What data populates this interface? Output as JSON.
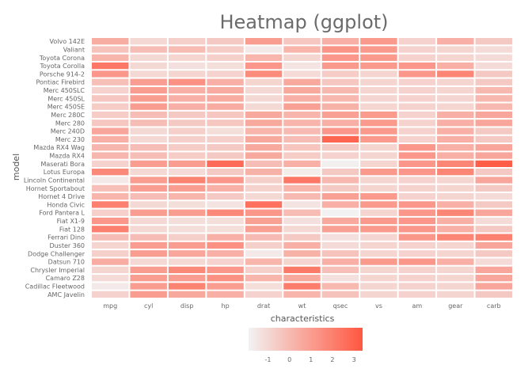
{
  "chart_data": {
    "type": "heatmap",
    "title": "Heatmap (ggplot)",
    "xlabel": "characteristics",
    "ylabel": "model",
    "columns": [
      "mpg",
      "cyl",
      "disp",
      "hp",
      "drat",
      "wt",
      "qsec",
      "vs",
      "am",
      "gear",
      "carb"
    ],
    "rows": [
      "Volvo 142E",
      "Valiant",
      "Toyota Corona",
      "Toyota Corolla",
      "Porsche 914-2",
      "Pontiac Firebird",
      "Merc 450SLC",
      "Merc 450SL",
      "Merc 450SE",
      "Merc 280C",
      "Merc 280",
      "Merc 240D",
      "Merc 230",
      "Mazda RX4 Wag",
      "Mazda RX4",
      "Maserati Bora",
      "Lotus Europa",
      "Lincoln Continental",
      "Hornet Sportabout",
      "Hornet 4 Drive",
      "Honda Civic",
      "Ford Pantera L",
      "Fiat X1-9",
      "Fiat 128",
      "Ferrari Dino",
      "Duster 360",
      "Dodge Challenger",
      "Datsun 710",
      "Chrysler Imperial",
      "Camaro Z28",
      "Cadillac Fleetwood",
      "AMC Javelin"
    ],
    "values": [
      [
        0.45,
        -1.0,
        -0.7,
        -0.5,
        1.0,
        -0.4,
        0.4,
        1.1,
        -0.8,
        0.4,
        -0.5
      ],
      [
        -0.3,
        -0.1,
        -0.05,
        -0.6,
        -1.6,
        0.2,
        1.3,
        1.1,
        -0.8,
        -0.9,
        -1.1
      ],
      [
        0.2,
        -1.0,
        -0.9,
        -0.7,
        0.2,
        -0.9,
        1.2,
        1.1,
        -0.8,
        -0.9,
        -1.1
      ],
      [
        2.3,
        -1.0,
        -1.3,
        -1.2,
        1.2,
        -1.4,
        1.1,
        1.1,
        1.2,
        0.4,
        -1.1
      ],
      [
        1.2,
        -1.0,
        -0.9,
        -0.8,
        1.6,
        -1.1,
        -0.6,
        -0.9,
        1.2,
        1.8,
        -0.5
      ],
      [
        -0.2,
        1.0,
        1.4,
        0.4,
        -0.9,
        0.6,
        -0.4,
        -0.9,
        -0.8,
        -0.9,
        -0.5
      ],
      [
        -0.8,
        1.0,
        0.4,
        0.5,
        -1.0,
        0.6,
        0.1,
        -0.9,
        -0.8,
        -0.9,
        0.1
      ],
      [
        -0.4,
        1.0,
        0.4,
        0.5,
        -1.0,
        0.4,
        0.1,
        -0.9,
        -0.8,
        -0.9,
        0.1
      ],
      [
        -0.6,
        1.0,
        0.4,
        0.5,
        -1.0,
        0.9,
        0.3,
        -0.9,
        -0.8,
        -0.9,
        0.1
      ],
      [
        -0.6,
        -0.1,
        -0.5,
        -0.4,
        0.6,
        0.2,
        0.9,
        1.1,
        -0.8,
        0.4,
        0.7
      ],
      [
        -0.4,
        -0.1,
        -0.5,
        -0.4,
        0.6,
        0.2,
        0.4,
        1.1,
        -0.8,
        0.4,
        0.7
      ],
      [
        0.7,
        -1.0,
        -0.7,
        -1.2,
        0.2,
        0.0,
        1.2,
        1.1,
        -0.8,
        0.4,
        -0.5
      ],
      [
        0.4,
        -1.0,
        -0.7,
        -0.7,
        0.6,
        -0.1,
        2.9,
        1.1,
        -0.8,
        0.4,
        -0.5
      ],
      [
        0.15,
        -0.1,
        -0.6,
        -0.5,
        0.6,
        -0.35,
        -0.5,
        -0.9,
        1.2,
        0.4,
        0.7
      ],
      [
        0.15,
        -0.1,
        -0.6,
        -0.5,
        0.6,
        -0.6,
        -0.8,
        -0.9,
        1.2,
        0.4,
        0.7
      ],
      [
        -0.8,
        1.0,
        1.0,
        2.7,
        -0.1,
        0.4,
        -1.8,
        -0.9,
        1.2,
        1.8,
        3.2
      ],
      [
        1.7,
        -1.0,
        -1.1,
        -0.5,
        0.3,
        -1.7,
        -0.5,
        1.1,
        1.2,
        1.8,
        -0.5
      ],
      [
        -1.6,
        1.0,
        1.9,
        1.2,
        -0.7,
        2.3,
        0.1,
        -0.9,
        -0.8,
        -0.9,
        0.7
      ],
      [
        -0.2,
        1.0,
        1.0,
        0.4,
        -0.8,
        0.2,
        -0.5,
        -0.9,
        -0.8,
        -0.9,
        -0.5
      ],
      [
        0.2,
        -0.1,
        0.2,
        -0.5,
        -1.0,
        0.0,
        0.9,
        1.1,
        -0.8,
        -0.9,
        -1.1
      ],
      [
        2.0,
        -1.0,
        -1.2,
        -1.4,
        2.5,
        -1.4,
        0.4,
        1.1,
        1.2,
        0.4,
        -0.5
      ],
      [
        -0.7,
        1.0,
        1.0,
        1.7,
        1.2,
        -0.05,
        -1.9,
        -0.9,
        1.2,
        1.8,
        0.7
      ],
      [
        1.2,
        -1.0,
        -1.2,
        -1.2,
        0.9,
        -1.3,
        0.6,
        1.1,
        1.2,
        0.4,
        -1.1
      ],
      [
        2.0,
        -1.0,
        -1.2,
        -1.2,
        0.9,
        -1.0,
        0.9,
        1.1,
        1.2,
        0.4,
        -0.5
      ],
      [
        -0.1,
        -0.1,
        -0.7,
        0.4,
        0.0,
        -0.5,
        -1.3,
        -0.9,
        1.2,
        1.8,
        2.0
      ],
      [
        -0.9,
        1.0,
        1.0,
        1.4,
        -0.7,
        0.4,
        -1.1,
        -0.9,
        -0.8,
        -0.9,
        0.7
      ],
      [
        -0.7,
        1.0,
        0.7,
        0.4,
        -1.6,
        0.3,
        -0.3,
        -0.9,
        -0.8,
        -0.9,
        -0.5
      ],
      [
        0.45,
        -1.0,
        -1.0,
        -0.8,
        0.2,
        -0.9,
        0.4,
        1.1,
        1.2,
        0.4,
        -1.1
      ],
      [
        -0.9,
        1.0,
        1.7,
        1.2,
        -0.7,
        2.2,
        -0.2,
        -0.9,
        -0.8,
        -0.9,
        0.7
      ],
      [
        -1.1,
        1.0,
        1.0,
        1.4,
        0.2,
        0.6,
        -1.3,
        -0.9,
        -0.8,
        -0.9,
        0.7
      ],
      [
        -1.6,
        1.0,
        1.9,
        1.0,
        -1.2,
        2.1,
        0.1,
        -0.9,
        -0.8,
        -0.9,
        0.7
      ],
      [
        -0.8,
        1.0,
        0.6,
        0.4,
        -0.8,
        0.2,
        -0.3,
        -0.9,
        -0.8,
        -0.9,
        -0.5
      ]
    ],
    "color_low": "#f2f2f2",
    "color_high": "#ff5740",
    "value_range": [
      -1.9,
      3.4
    ],
    "legend": {
      "position": "bottom",
      "ticks": [
        -1,
        0,
        1,
        2,
        3
      ]
    }
  }
}
